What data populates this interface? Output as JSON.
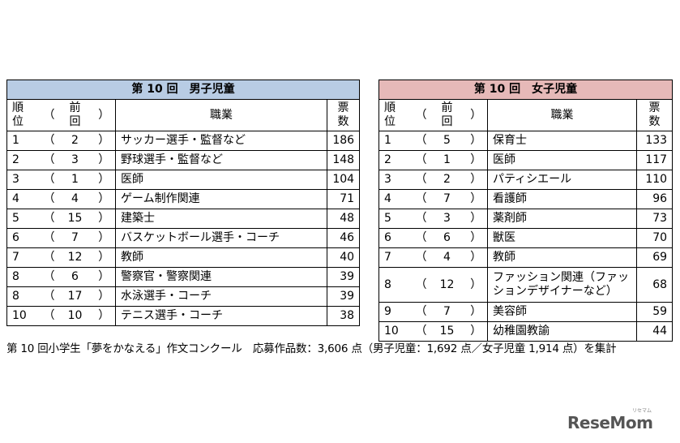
{
  "male": {
    "title": "第 10 回　男子児童",
    "headers": {
      "rank": [
        "順",
        "位"
      ],
      "lp": "（",
      "prev": [
        "前",
        "回"
      ],
      "rp": "）",
      "job": "職業",
      "votes": [
        "票",
        "数"
      ]
    },
    "rows": [
      {
        "rank": "1",
        "prev": "2",
        "job": "サッカー選手・監督など",
        "votes": "186"
      },
      {
        "rank": "2",
        "prev": "3",
        "job": "野球選手・監督など",
        "votes": "148"
      },
      {
        "rank": "3",
        "prev": "1",
        "job": "医師",
        "votes": "104"
      },
      {
        "rank": "4",
        "prev": "4",
        "job": "ゲーム制作関連",
        "votes": "71"
      },
      {
        "rank": "5",
        "prev": "15",
        "job": "建築士",
        "votes": "48"
      },
      {
        "rank": "6",
        "prev": "7",
        "job": "バスケットボール選手・コーチ",
        "votes": "46"
      },
      {
        "rank": "7",
        "prev": "12",
        "job": "教師",
        "votes": "40"
      },
      {
        "rank": "8",
        "prev": "6",
        "job": "警察官・警察関連",
        "votes": "39"
      },
      {
        "rank": "8",
        "prev": "17",
        "job": "水泳選手・コーチ",
        "votes": "39"
      },
      {
        "rank": "10",
        "prev": "10",
        "job": "テニス選手・コーチ",
        "votes": "38"
      }
    ]
  },
  "female": {
    "title": "第 10 回　女子児童",
    "headers": {
      "rank": [
        "順",
        "位"
      ],
      "lp": "（",
      "prev": [
        "前",
        "回"
      ],
      "rp": "）",
      "job": "職業",
      "votes": [
        "票",
        "数"
      ]
    },
    "rows": [
      {
        "rank": "1",
        "prev": "5",
        "job": "保育士",
        "votes": "133"
      },
      {
        "rank": "2",
        "prev": "1",
        "job": "医師",
        "votes": "117"
      },
      {
        "rank": "3",
        "prev": "2",
        "job": "パティシエール",
        "votes": "110"
      },
      {
        "rank": "4",
        "prev": "7",
        "job": "看護師",
        "votes": "96"
      },
      {
        "rank": "5",
        "prev": "3",
        "job": "薬剤師",
        "votes": "73"
      },
      {
        "rank": "6",
        "prev": "6",
        "job": "獣医",
        "votes": "70"
      },
      {
        "rank": "7",
        "prev": "4",
        "job": "教師",
        "votes": "69"
      },
      {
        "rank": "8",
        "prev": "12",
        "job": [
          "ファッション関連（ファッ",
          "ションデザイナーなど）"
        ],
        "votes": "68"
      },
      {
        "rank": "9",
        "prev": "7",
        "job": "美容師",
        "votes": "59"
      },
      {
        "rank": "10",
        "prev": "15",
        "job": "幼稚園教諭",
        "votes": "44"
      }
    ]
  },
  "paren_open": "（",
  "paren_close": "）",
  "caption": "第 10 回小学生「夢をかなえる」作文コンクール　応募作品数：3,606 点（男子児童：1,692 点／女子児童 1,914 点）を集計",
  "logo": {
    "text": "ReseMom",
    "sub": "リセマム"
  }
}
